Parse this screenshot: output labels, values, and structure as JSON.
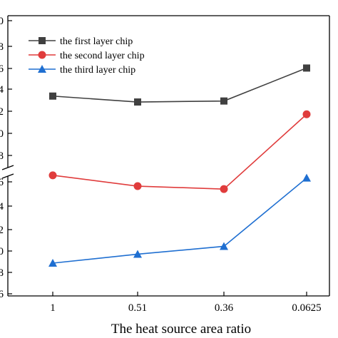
{
  "chart_data": {
    "type": "line",
    "title": "",
    "xlabel": "The heat source area ratio",
    "ylabel": "",
    "categories": [
      "1",
      "0.51",
      "0.36",
      "0.0625"
    ],
    "broken_y_axis": true,
    "y_upper_ticks": [
      "0",
      "8",
      "6",
      "4",
      "2",
      "0",
      "8"
    ],
    "y_lower_ticks": [
      "6",
      "4",
      "2",
      "0",
      "8",
      "6"
    ],
    "grid": false,
    "legend_position": "top-left",
    "series": [
      {
        "name": "the first layer chip",
        "color": "#404040",
        "marker": "square",
        "segment": "upper",
        "values": [
          3.25,
          2.65,
          2.75,
          6.1
        ]
      },
      {
        "name": "the second layer chip",
        "color": "#e03c3c",
        "marker": "circle",
        "segment": "upper",
        "values": [
          -4.8,
          -5.9,
          -6.2,
          1.4
        ]
      },
      {
        "name": "the third layer chip",
        "color": "#1f6fd1",
        "marker": "triangle",
        "segment": "lower",
        "values": [
          8.9,
          9.7,
          10.4,
          16.5
        ]
      }
    ]
  }
}
